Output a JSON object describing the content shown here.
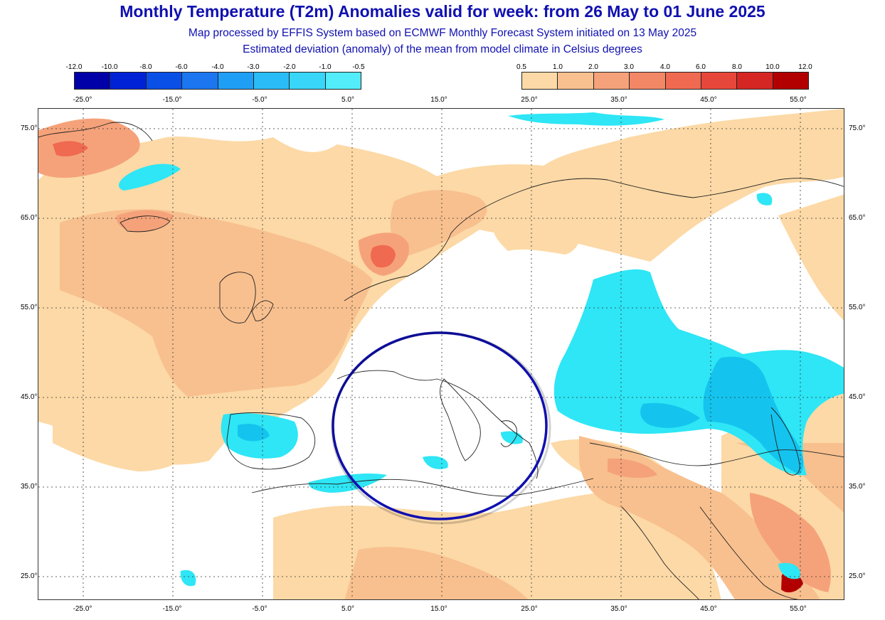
{
  "header": {
    "title": "Monthly Temperature (T2m) Anomalies valid for week: from 26 May to 01 June 2025",
    "subtitle1": "Map processed by EFFIS System based on ECMWF Monthly Forecast System initiated on 13 May 2025",
    "subtitle2": "Estimated deviation (anomaly) of the mean from model climate in Celsius degrees"
  },
  "legend_cold": {
    "labels": [
      "-12.0",
      "-10.0",
      "-8.0",
      "-6.0",
      "-4.0",
      "-3.0",
      "-2.0",
      "-1.0",
      "-0.5"
    ],
    "colors": [
      "#0000a8",
      "#0022d6",
      "#0a4fe6",
      "#1b76f0",
      "#1f9ef5",
      "#2abcf7",
      "#38d6f9",
      "#52ecfb"
    ]
  },
  "legend_warm": {
    "labels": [
      "0.5",
      "1.0",
      "2.0",
      "3.0",
      "4.0",
      "6.0",
      "8.0",
      "10.0",
      "12.0"
    ],
    "colors": [
      "#fcd9a6",
      "#f8c08f",
      "#f5a27a",
      "#f28766",
      "#ef6a50",
      "#e7473a",
      "#d52623",
      "#b20000"
    ]
  },
  "scale_labels": {
    "left": [
      "-25.0°",
      "-15.0°",
      "-5.0°",
      "5.0°",
      "15.0°"
    ],
    "right": [
      "25.0°",
      "35.0°",
      "45.0°",
      "55.0°"
    ]
  },
  "axes": {
    "lat_labels": [
      "75.0°",
      "65.0°",
      "55.0°",
      "45.0°",
      "35.0°",
      "25.0°"
    ],
    "lon_labels": [
      "-25.0°",
      "-15.0°",
      "-5.0°",
      "5.0°",
      "15.0°",
      "25.0°",
      "35.0°",
      "45.0°",
      "55.0°"
    ]
  },
  "colors": {
    "title": "#1010b0",
    "highlight_circle": "#1010b0",
    "land_outline": "#222222",
    "grid": "#333333"
  }
}
